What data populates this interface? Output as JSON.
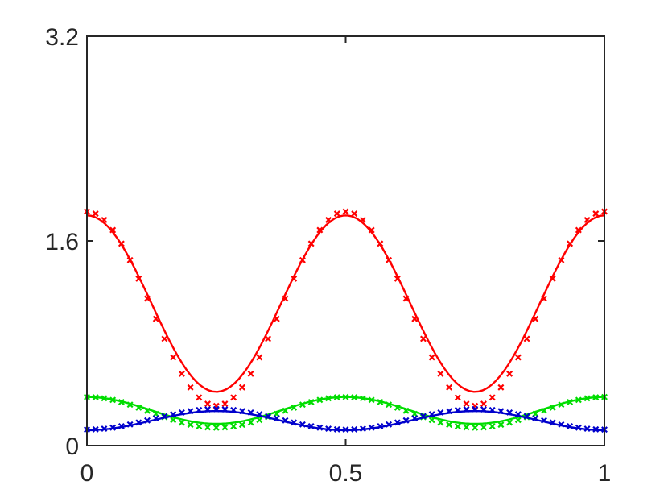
{
  "chart_data": {
    "type": "line",
    "title": "",
    "xlabel": "",
    "ylabel": "",
    "xlim": [
      0,
      1
    ],
    "ylim": [
      0,
      3.2
    ],
    "xticks": [
      0,
      0.5,
      1
    ],
    "xtick_labels": [
      "0",
      "0.5",
      "1"
    ],
    "yticks": [
      0,
      1.6,
      3.2
    ],
    "ytick_labels": [
      "0",
      "1.6",
      "3.2"
    ],
    "grid": false,
    "legend": "none",
    "series": [
      {
        "color": "#ff0000",
        "style": "line",
        "formula": "mean + amp*cos(4*pi*x)",
        "mean": 1.11,
        "amp": 0.69,
        "samples": 120
      },
      {
        "color": "#ff0000",
        "style": "markers",
        "marker": "x",
        "formula": "mean + amp*cos(4*pi*x)",
        "mean": 1.07,
        "amp": 0.76,
        "samples": 61
      },
      {
        "color": "#00dd00",
        "style": "line",
        "formula": "mean + amp*cos(4*pi*x)",
        "mean": 0.275,
        "amp": 0.105,
        "samples": 120
      },
      {
        "color": "#00dd00",
        "style": "markers",
        "marker": "x",
        "formula": "mean + amp*cos(4*pi*x)",
        "mean": 0.26,
        "amp": 0.12,
        "samples": 61
      },
      {
        "color": "#0000cc",
        "style": "line",
        "formula": "mean + amp*cos(4*pi*x)",
        "mean": 0.195,
        "amp": -0.075,
        "samples": 120
      },
      {
        "color": "#0000cc",
        "style": "markers",
        "marker": "x",
        "formula": "mean + amp*cos(4*pi*x)",
        "mean": 0.205,
        "amp": -0.08,
        "samples": 61
      }
    ]
  }
}
